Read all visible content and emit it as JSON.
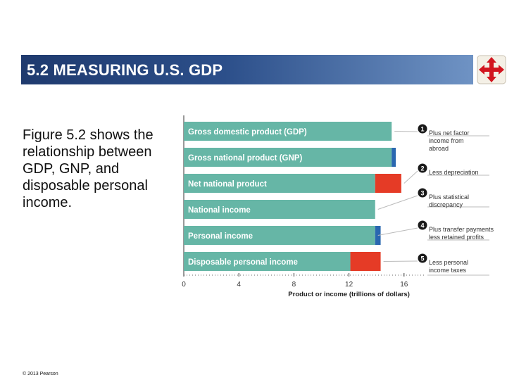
{
  "slide": {
    "title": "5.2  MEASURING U.S. GDP",
    "body": "Figure 5.2 shows the relationship between GDP, GNP, and disposable personal income.",
    "copyright": "© 2013 Pearson"
  },
  "nav_icon": "four-arrow-move-icon",
  "colors": {
    "title_bar": "#2c4f8a",
    "bar_fill": "#66b6a6",
    "increase": "#2a67b0",
    "decrease": "#e53b26",
    "step_circle": "#1a1a1a"
  },
  "chart_data": {
    "type": "bar",
    "orientation": "horizontal",
    "title": "",
    "xlabel": "Product or income (trillions of dollars)",
    "ylabel": "",
    "xlim": [
      0,
      17.5
    ],
    "xticks": [
      0,
      4,
      8,
      12,
      16
    ],
    "grid": false,
    "categories": [
      "Gross domestic product (GDP)",
      "Gross national product (GNP)",
      "Net national product",
      "National income",
      "Personal income",
      "Disposable personal income"
    ],
    "values": [
      15.1,
      15.1,
      13.9,
      13.9,
      13.9,
      12.1
    ],
    "adjustments": [
      {
        "type": "none",
        "amount": 0
      },
      {
        "type": "add",
        "amount": 0.3
      },
      {
        "type": "subtract",
        "amount": 1.9
      },
      {
        "type": "none",
        "amount": 0
      },
      {
        "type": "add",
        "amount": 0.4
      },
      {
        "type": "subtract",
        "amount": 2.2
      }
    ],
    "annotations": [
      {
        "step": "1",
        "text": [
          "Plus net factor",
          "income from",
          "abroad"
        ]
      },
      {
        "step": "2",
        "text": [
          "Less depreciation"
        ]
      },
      {
        "step": "3",
        "text": [
          "Plus statistical",
          "discrepancy"
        ]
      },
      {
        "step": "4",
        "text": [
          "Plus transfer payments",
          "less retained profits"
        ]
      },
      {
        "step": "5",
        "text": [
          "Less personal",
          "income taxes"
        ]
      }
    ]
  }
}
